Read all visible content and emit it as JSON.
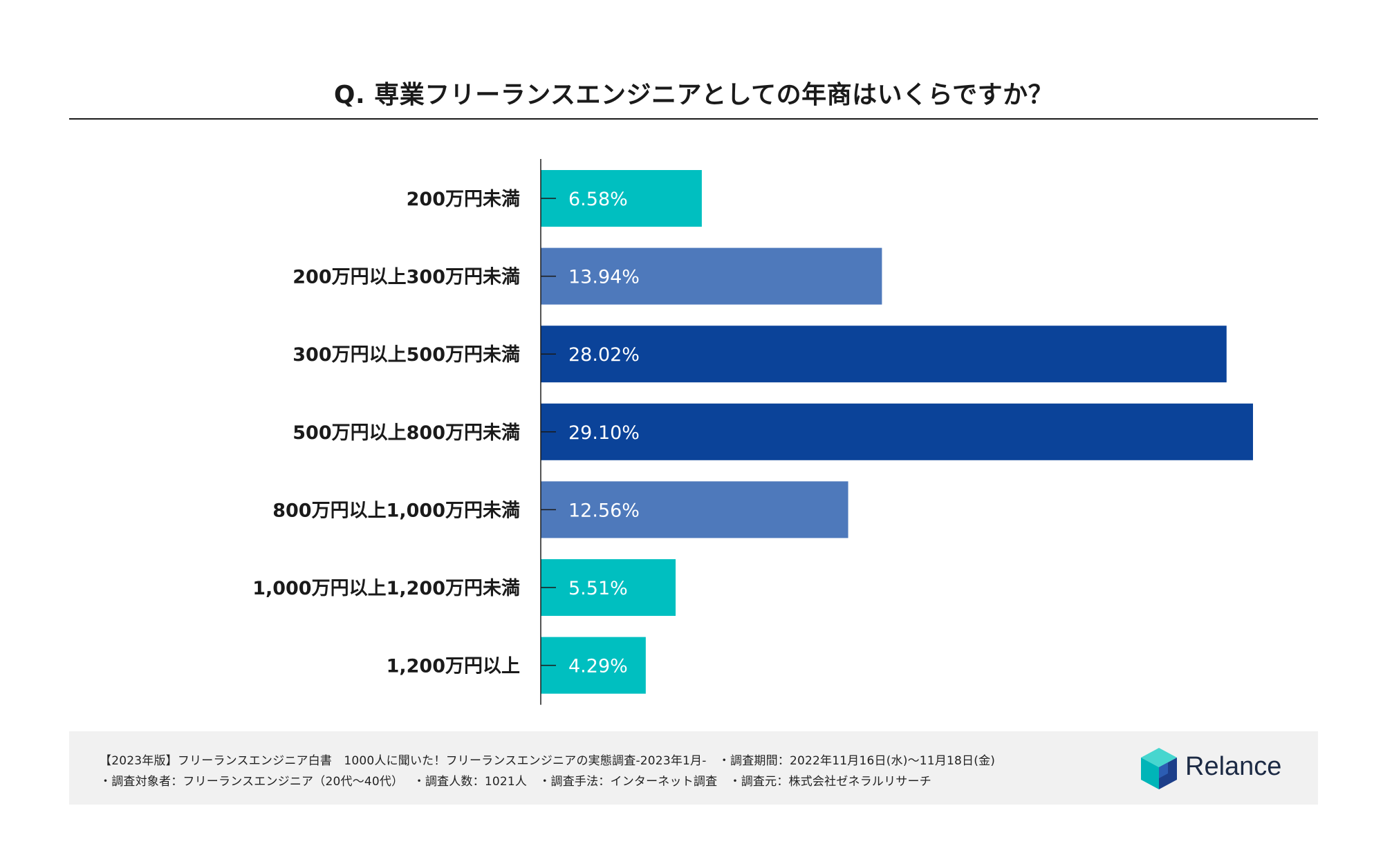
{
  "colors": {
    "teal": "#00bfc0",
    "mid_blue": "#4e79bb",
    "dark_blue": "#0b4399",
    "axis": "#1a1a1a",
    "label_text": "#ffffff"
  },
  "chart_data": {
    "type": "bar",
    "orientation": "horizontal",
    "title": "Q. 専業フリーランスエンジニアとしての年商はいくらですか？",
    "categories": [
      "200万円未満",
      "200万円以上300万円未満",
      "300万円以上500万円未満",
      "500万円以上800万円未満",
      "800万円以上1,000万円未満",
      "1,000万円以上1,200万円未満",
      "1,200万円以上"
    ],
    "values": [
      6.58,
      13.94,
      28.02,
      29.1,
      12.56,
      5.51,
      4.29
    ],
    "value_labels": [
      "6.58%",
      "13.94%",
      "28.02%",
      "29.10%",
      "12.56%",
      "5.51%",
      "4.29%"
    ],
    "bar_colors": [
      "teal",
      "mid_blue",
      "dark_blue",
      "dark_blue",
      "mid_blue",
      "teal",
      "teal"
    ],
    "xlim": [
      0,
      29.1
    ],
    "grid": false,
    "xlabel": "",
    "ylabel": ""
  },
  "footer": {
    "line1": "【2023年版】フリーランスエンジニア白書　1000人に聞いた！フリーランスエンジニアの実態調査-2023年1月-　・調査期間：2022年11月16日(水)〜11月18日(金)",
    "line2": "・調査対象者：フリーランスエンジニア（20代〜40代）　 ・調査人数：1021人　・調査手法：インターネット調査　・調査元：株式会社ゼネラルリサーチ",
    "logo_text": "Relance"
  }
}
